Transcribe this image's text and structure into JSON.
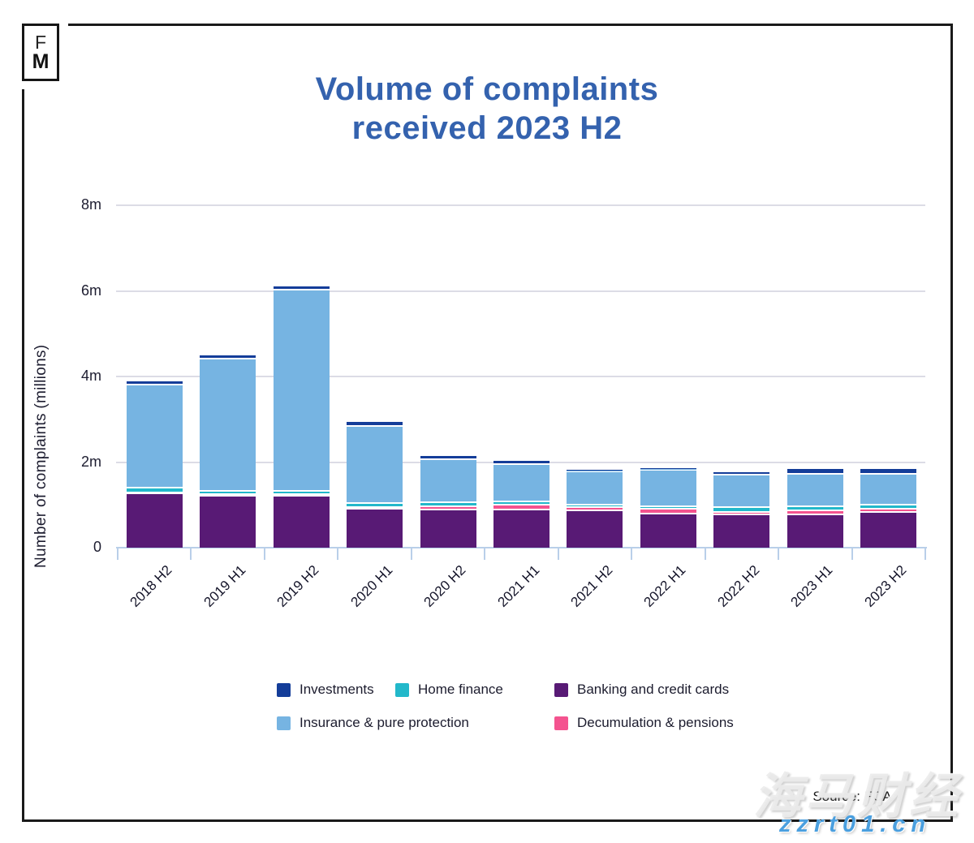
{
  "logo": {
    "top": "F",
    "bottom": "M"
  },
  "header": {
    "title_line1": "Volume of complaints",
    "title_line2": "received 2023 H2"
  },
  "footer": {
    "source": "Source: FCA"
  },
  "watermark": {
    "brand": "海马财经",
    "url": "zzrt01.cn"
  },
  "colors": {
    "title": "#3462ae",
    "investments": "#143d99",
    "home_finance": "#22b8ca",
    "banking": "#581a75",
    "insurance": "#76b4e2",
    "decumulation": "#f4538f",
    "gridline": "#dcdce6",
    "axis": "#b9cfe9"
  },
  "chart_data": {
    "type": "bar",
    "stacked": true,
    "title": "Volume of complaints received 2023 H2",
    "xlabel": "",
    "ylabel": "Number of complaints (millions)",
    "ylim": [
      0,
      8
    ],
    "yticks": [
      {
        "value": 0,
        "label": "0"
      },
      {
        "value": 2,
        "label": "2m"
      },
      {
        "value": 4,
        "label": "4m"
      },
      {
        "value": 6,
        "label": "6m"
      },
      {
        "value": 8,
        "label": "8m"
      }
    ],
    "grid": true,
    "legend_position": "bottom",
    "categories": [
      "2018 H2",
      "2019 H1",
      "2019 H2",
      "2020 H1",
      "2020 H2",
      "2021 H1",
      "2021 H2",
      "2022 H1",
      "2022 H2",
      "2023 H1",
      "2023 H2"
    ],
    "series": [
      {
        "name": "Banking and credit cards",
        "color": "#581a75",
        "values": [
          1.29,
          1.23,
          1.23,
          0.93,
          0.91,
          0.91,
          0.89,
          0.82,
          0.8,
          0.8,
          0.85
        ]
      },
      {
        "name": "Decumulation & pensions",
        "color": "#f4538f",
        "values": [
          0.02,
          0.04,
          0.04,
          0.03,
          0.07,
          0.11,
          0.07,
          0.11,
          0.05,
          0.09,
          0.07
        ]
      },
      {
        "name": "Home finance",
        "color": "#22b8ca",
        "values": [
          0.12,
          0.07,
          0.07,
          0.11,
          0.1,
          0.08,
          0.06,
          0.06,
          0.12,
          0.1,
          0.1
        ]
      },
      {
        "name": "Insurance & pure protection",
        "color": "#76b4e2",
        "values": [
          2.39,
          3.09,
          4.7,
          1.8,
          1.01,
          0.87,
          0.78,
          0.84,
          0.75,
          0.76,
          0.72
        ]
      },
      {
        "name": "Investments",
        "color": "#143d99",
        "values": [
          0.06,
          0.06,
          0.06,
          0.06,
          0.06,
          0.05,
          0.02,
          0.02,
          0.05,
          0.08,
          0.09
        ]
      }
    ],
    "stack_order": "bottom-to-top as listed",
    "legend_rows": [
      [
        "Investments",
        "Home finance",
        "Banking and credit cards"
      ],
      [
        "Insurance & pure protection",
        "Decumulation & pensions"
      ]
    ]
  }
}
